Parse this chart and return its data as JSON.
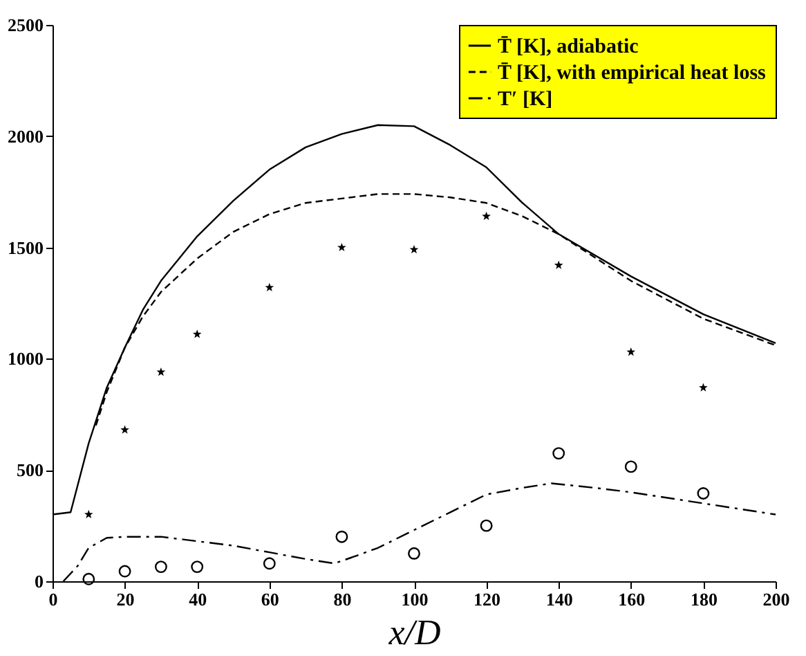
{
  "chart_data": {
    "type": "line",
    "xlabel": "x/D",
    "xlim": [
      0,
      200
    ],
    "xticks": [
      0,
      20,
      40,
      60,
      80,
      100,
      120,
      140,
      160,
      180,
      200
    ],
    "ylim": [
      0,
      2500
    ],
    "yticks": [
      0,
      500,
      1000,
      1500,
      2000,
      2500
    ],
    "grid": false,
    "legend": "top right",
    "series": [
      {
        "name": "T̄ [K], adiabatic",
        "color": "#000000",
        "line_style": "solid",
        "x": [
          0,
          5,
          10,
          15,
          20,
          25,
          30,
          40,
          50,
          60,
          70,
          80,
          90,
          100,
          110,
          120,
          130,
          140,
          160,
          180,
          200
        ],
        "values": [
          300,
          310,
          620,
          870,
          1050,
          1220,
          1350,
          1550,
          1710,
          1850,
          1950,
          2010,
          2050,
          2045,
          1960,
          1860,
          1700,
          1560,
          1370,
          1200,
          1070
        ]
      },
      {
        "name": "T̄ [K], with empirical heat loss",
        "color": "#000000",
        "line_style": "dashed",
        "x": [
          12,
          15,
          20,
          25,
          30,
          40,
          50,
          60,
          70,
          80,
          90,
          100,
          110,
          120,
          130,
          140,
          160,
          180,
          200
        ],
        "values": [
          700,
          850,
          1050,
          1190,
          1300,
          1450,
          1570,
          1650,
          1700,
          1720,
          1740,
          1740,
          1725,
          1700,
          1640,
          1560,
          1350,
          1180,
          1060
        ]
      },
      {
        "name": "T′ [K]",
        "color": "#000000",
        "line_style": "dashdot",
        "x": [
          3,
          7,
          10,
          15,
          20,
          30,
          40,
          50,
          60,
          70,
          78,
          85,
          90,
          100,
          110,
          120,
          130,
          138,
          150,
          160,
          180,
          200
        ],
        "values": [
          0,
          70,
          150,
          195,
          200,
          200,
          180,
          160,
          130,
          100,
          80,
          120,
          150,
          230,
          310,
          390,
          420,
          440,
          420,
          400,
          350,
          300
        ]
      },
      {
        "type": "scatter",
        "marker": "star",
        "color": "#000000",
        "x": [
          10,
          20,
          30,
          40,
          60,
          80,
          100,
          120,
          140,
          160,
          180
        ],
        "values": [
          300,
          680,
          940,
          1110,
          1320,
          1500,
          1490,
          1640,
          1420,
          1030,
          870
        ]
      },
      {
        "type": "scatter",
        "marker": "circle",
        "color": "#000000",
        "x": [
          10,
          20,
          30,
          40,
          60,
          80,
          100,
          120,
          140,
          160,
          180
        ],
        "values": [
          10,
          45,
          65,
          65,
          80,
          200,
          125,
          250,
          575,
          515,
          395
        ]
      }
    ]
  }
}
